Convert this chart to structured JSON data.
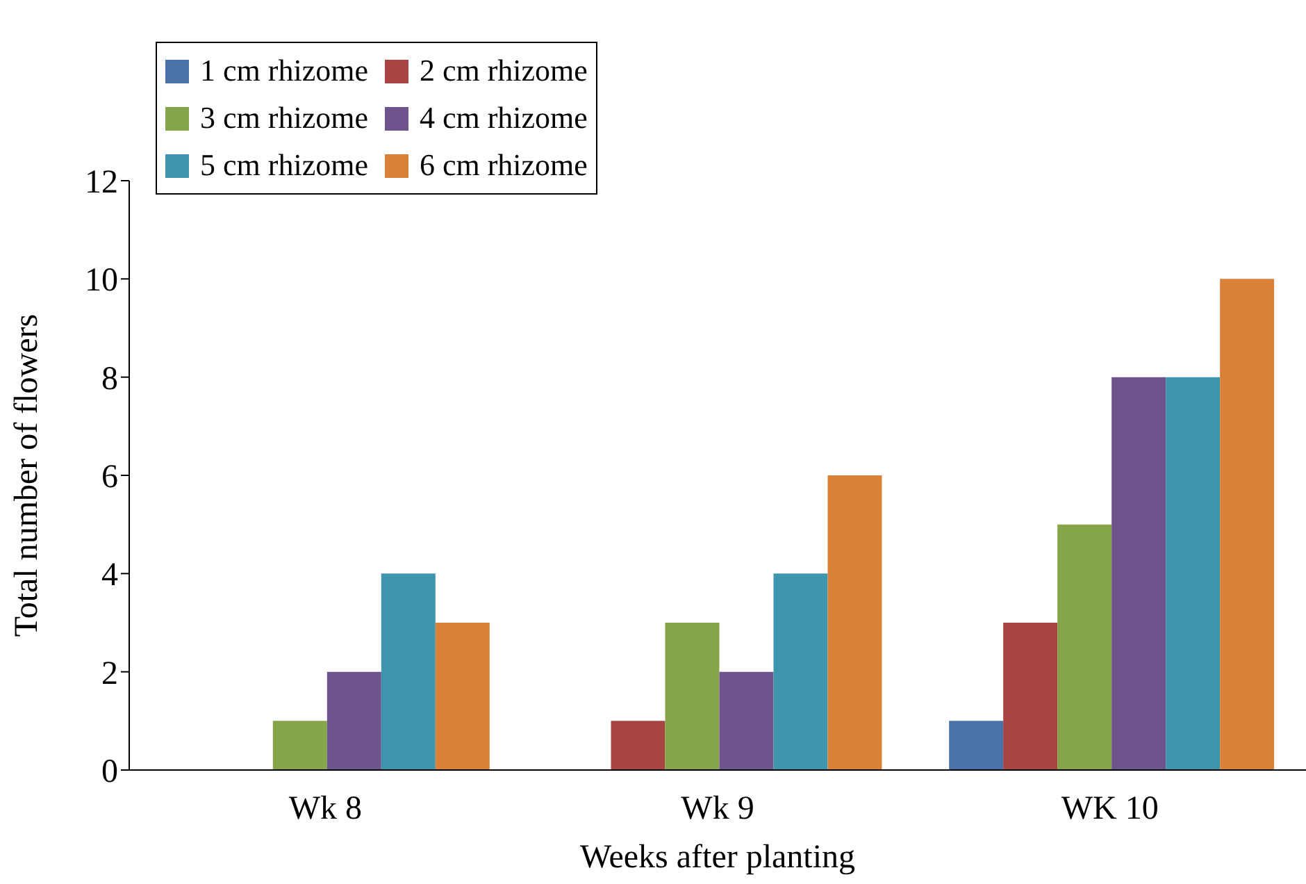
{
  "chart_data": {
    "type": "bar",
    "xlabel": "Weeks after planting",
    "ylabel": "Total number of flowers",
    "categories": [
      "Wk 8",
      "Wk 9",
      "WK 10"
    ],
    "series": [
      {
        "name": "1 cm rhizome",
        "color": "#4a72a8",
        "values": [
          0,
          0,
          1
        ]
      },
      {
        "name": "2 cm rhizome",
        "color": "#a84442",
        "values": [
          0,
          1,
          3
        ]
      },
      {
        "name": "3 cm rhizome",
        "color": "#86a44a",
        "values": [
          1,
          3,
          5
        ]
      },
      {
        "name": "4 cm rhizome",
        "color": "#6e548d",
        "values": [
          2,
          2,
          8
        ]
      },
      {
        "name": "5 cm rhizome",
        "color": "#3d96ae",
        "values": [
          4,
          4,
          8
        ]
      },
      {
        "name": "6 cm rhizome",
        "color": "#da8138",
        "values": [
          3,
          6,
          10
        ]
      }
    ],
    "ylim": [
      0,
      12
    ],
    "yticks": [
      0,
      2,
      4,
      6,
      8,
      10,
      12
    ],
    "grid": false,
    "legend": "top left"
  }
}
